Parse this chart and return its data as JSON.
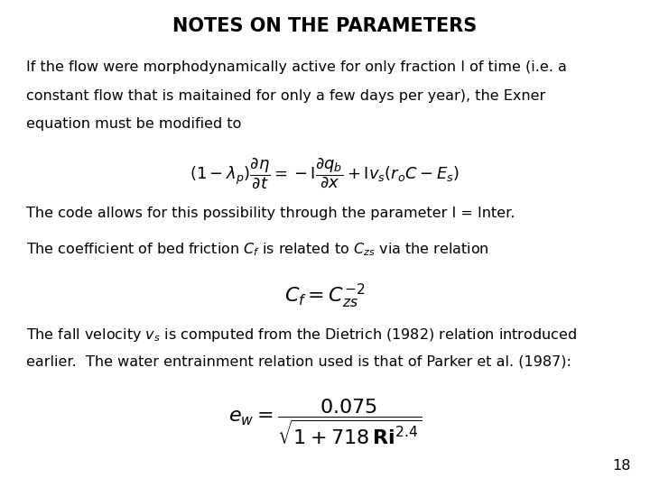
{
  "title": "NOTES ON THE PARAMETERS",
  "title_fontsize": 15,
  "body_fontsize": 11.5,
  "background_color": "#ffffff",
  "text_color": "#000000",
  "page_number": "18",
  "paragraph1_line1": "If the flow were morphodynamically active for only fraction I of time (i.e. a",
  "paragraph1_line2": "constant flow that is maitained for only a few days per year), the Exner",
  "paragraph1_line3": "equation must be modified to",
  "paragraph2": "The code allows for this possibility through the parameter I = Inter.",
  "paragraph3": "The coefficient of bed friction $C_f$ is related to $C_{zs}$ via the relation",
  "paragraph4_line1": "The fall velocity $v_s$ is computed from the Dietrich (1982) relation introduced",
  "paragraph4_line2": "earlier.  The water entrainment relation used is that of Parker et al. (1987):",
  "eq1_fontsize": 13,
  "eq2_fontsize": 16,
  "eq3_fontsize": 16
}
